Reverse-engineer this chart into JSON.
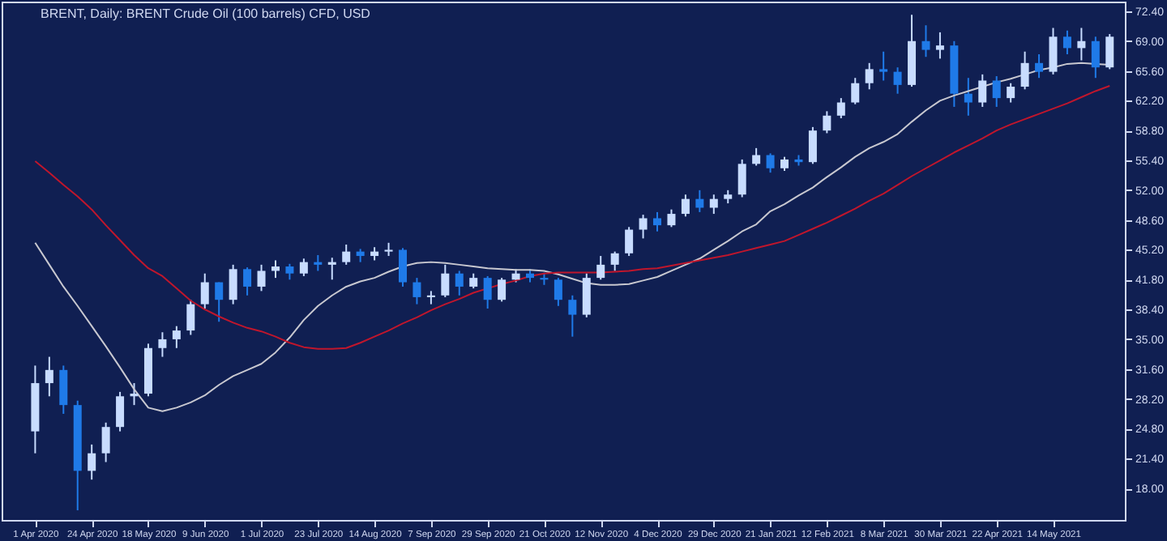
{
  "chart_data": {
    "type": "candlestick",
    "title": "BRENT, Daily: BRENT Crude Oil (100 barrels) CFD, USD",
    "categories": [
      "1 Apr 2020",
      null,
      null,
      null,
      "24 Apr 2020",
      null,
      null,
      null,
      "18 May 2020",
      null,
      null,
      null,
      "9 Jun 2020",
      null,
      null,
      null,
      "1 Jul 2020",
      null,
      null,
      null,
      "23 Jul 2020",
      null,
      null,
      null,
      "14 Aug 2020",
      null,
      null,
      null,
      "7 Sep 2020",
      null,
      null,
      null,
      "29 Sep 2020",
      null,
      null,
      null,
      "21 Oct 2020",
      null,
      null,
      null,
      "12 Nov 2020",
      null,
      null,
      null,
      "4 Dec 2020",
      null,
      null,
      null,
      "29 Dec 2020",
      null,
      null,
      null,
      "21 Jan 2021",
      null,
      null,
      null,
      "12 Feb 2021",
      null,
      null,
      null,
      "8 Mar 2021",
      null,
      null,
      null,
      "30 Mar 2021",
      null,
      null,
      null,
      "22 Apr 2021",
      null,
      null,
      null,
      "14 May 2021",
      null,
      null,
      null,
      null
    ],
    "ohlc": [
      [
        24.5,
        32.0,
        22.0,
        30.0
      ],
      [
        30.0,
        33.0,
        28.5,
        31.5
      ],
      [
        31.5,
        32.0,
        26.5,
        27.5
      ],
      [
        27.5,
        28.0,
        15.5,
        20.0
      ],
      [
        20.0,
        23.0,
        19.0,
        22.0
      ],
      [
        22.0,
        25.5,
        21.0,
        25.0
      ],
      [
        25.0,
        29.0,
        24.5,
        28.5
      ],
      [
        28.5,
        30.0,
        27.5,
        28.8
      ],
      [
        28.8,
        34.5,
        28.5,
        34.0
      ],
      [
        34.0,
        35.8,
        33.0,
        35.0
      ],
      [
        35.0,
        36.5,
        34.0,
        36.0
      ],
      [
        36.0,
        39.5,
        35.5,
        39.0
      ],
      [
        39.0,
        42.5,
        38.5,
        41.5
      ],
      [
        41.5,
        41.5,
        37.0,
        39.5
      ],
      [
        39.5,
        43.5,
        39.0,
        43.0
      ],
      [
        43.0,
        43.2,
        40.0,
        41.0
      ],
      [
        41.0,
        43.5,
        40.5,
        42.8
      ],
      [
        42.8,
        44.0,
        42.0,
        43.3
      ],
      [
        43.3,
        43.6,
        41.8,
        42.5
      ],
      [
        42.5,
        44.2,
        42.2,
        43.8
      ],
      [
        43.8,
        44.6,
        42.8,
        43.5
      ],
      [
        43.5,
        44.3,
        41.8,
        43.8
      ],
      [
        43.8,
        45.8,
        43.5,
        45.0
      ],
      [
        45.0,
        45.3,
        43.8,
        44.5
      ],
      [
        44.5,
        45.5,
        44.0,
        45.0
      ],
      [
        45.0,
        46.0,
        44.5,
        45.2
      ],
      [
        45.2,
        45.4,
        41.0,
        41.5
      ],
      [
        41.5,
        42.0,
        39.0,
        39.8
      ],
      [
        39.8,
        40.5,
        39.0,
        40.0
      ],
      [
        40.0,
        43.5,
        39.8,
        42.5
      ],
      [
        42.5,
        42.8,
        40.0,
        41.0
      ],
      [
        41.0,
        42.5,
        40.8,
        42.0
      ],
      [
        42.0,
        42.2,
        38.5,
        39.5
      ],
      [
        39.5,
        42.0,
        39.3,
        41.8
      ],
      [
        41.8,
        43.0,
        41.5,
        42.5
      ],
      [
        42.5,
        43.0,
        41.5,
        42.0
      ],
      [
        42.0,
        42.6,
        41.2,
        41.8
      ],
      [
        41.8,
        42.0,
        38.8,
        39.5
      ],
      [
        39.5,
        40.0,
        35.3,
        37.8
      ],
      [
        37.8,
        42.5,
        37.5,
        42.0
      ],
      [
        42.0,
        44.5,
        41.8,
        43.5
      ],
      [
        43.5,
        45.0,
        42.8,
        44.8
      ],
      [
        44.8,
        47.8,
        44.5,
        47.5
      ],
      [
        47.5,
        49.2,
        46.5,
        48.8
      ],
      [
        48.8,
        49.5,
        47.3,
        48.0
      ],
      [
        48.0,
        49.8,
        47.8,
        49.3
      ],
      [
        49.3,
        51.5,
        49.0,
        51.0
      ],
      [
        51.0,
        52.0,
        49.5,
        50.0
      ],
      [
        50.0,
        51.5,
        49.3,
        51.0
      ],
      [
        51.0,
        52.0,
        50.5,
        51.5
      ],
      [
        51.5,
        55.5,
        51.2,
        55.0
      ],
      [
        55.0,
        56.8,
        54.8,
        56.0
      ],
      [
        56.0,
        56.2,
        54.0,
        54.5
      ],
      [
        54.5,
        55.8,
        54.2,
        55.5
      ],
      [
        55.5,
        56.0,
        54.8,
        55.2
      ],
      [
        55.2,
        59.2,
        55.0,
        58.8
      ],
      [
        58.8,
        61.0,
        58.5,
        60.5
      ],
      [
        60.5,
        62.5,
        60.2,
        62.0
      ],
      [
        62.0,
        64.8,
        61.8,
        64.2
      ],
      [
        64.2,
        66.5,
        63.5,
        65.8
      ],
      [
        65.8,
        67.8,
        64.5,
        65.5
      ],
      [
        65.5,
        66.0,
        63.0,
        64.0
      ],
      [
        64.0,
        72.0,
        63.8,
        69.0
      ],
      [
        69.0,
        70.8,
        67.2,
        68.0
      ],
      [
        68.0,
        70.0,
        67.0,
        68.5
      ],
      [
        68.5,
        69.0,
        61.5,
        63.0
      ],
      [
        63.0,
        64.8,
        60.5,
        62.0
      ],
      [
        62.0,
        65.2,
        61.5,
        64.5
      ],
      [
        64.5,
        65.0,
        61.5,
        62.5
      ],
      [
        62.5,
        64.2,
        62.0,
        63.8
      ],
      [
        63.8,
        67.8,
        63.5,
        66.5
      ],
      [
        66.5,
        67.5,
        64.8,
        65.5
      ],
      [
        65.5,
        70.5,
        65.2,
        69.5
      ],
      [
        69.5,
        70.2,
        67.5,
        68.2
      ],
      [
        68.2,
        70.5,
        66.8,
        69.0
      ],
      [
        69.0,
        69.5,
        64.8,
        66.0
      ],
      [
        66.0,
        69.8,
        65.8,
        69.5
      ]
    ],
    "colors": [
      "#c8dcff",
      "#c8dcff",
      "#1f7ae8",
      "#1f7ae8",
      "#c8dcff",
      "#c8dcff",
      "#c8dcff",
      "#c8dcff",
      "#c8dcff",
      "#c8dcff",
      "#c8dcff",
      "#c8dcff",
      "#c8dcff",
      "#1f7ae8",
      "#c8dcff",
      "#1f7ae8",
      "#c8dcff",
      "#c8dcff",
      "#1f7ae8",
      "#c8dcff",
      "#1f7ae8",
      "#c8dcff",
      "#c8dcff",
      "#1f7ae8",
      "#c8dcff",
      "#c8dcff",
      "#1f7ae8",
      "#1f7ae8",
      "#c8dcff",
      "#c8dcff",
      "#1f7ae8",
      "#c8dcff",
      "#1f7ae8",
      "#c8dcff",
      "#c8dcff",
      "#1f7ae8",
      "#1f7ae8",
      "#1f7ae8",
      "#1f7ae8",
      "#c8dcff",
      "#c8dcff",
      "#c8dcff",
      "#c8dcff",
      "#c8dcff",
      "#1f7ae8",
      "#c8dcff",
      "#c8dcff",
      "#1f7ae8",
      "#c8dcff",
      "#c8dcff",
      "#c8dcff",
      "#c8dcff",
      "#1f7ae8",
      "#c8dcff",
      "#1f7ae8",
      "#c8dcff",
      "#c8dcff",
      "#c8dcff",
      "#c8dcff",
      "#c8dcff",
      "#1f7ae8",
      "#1f7ae8",
      "#c8dcff",
      "#1f7ae8",
      "#c8dcff",
      "#1f7ae8",
      "#1f7ae8",
      "#c8dcff",
      "#1f7ae8",
      "#c8dcff",
      "#c8dcff",
      "#1f7ae8",
      "#c8dcff",
      "#1f7ae8",
      "#c8dcff",
      "#1f7ae8",
      "#c8dcff"
    ],
    "series": [
      {
        "type": "line",
        "color": "#c8c8d0",
        "values": [
          46.0,
          43.5,
          41.0,
          38.8,
          36.5,
          34.2,
          31.8,
          29.3,
          27.2,
          26.8,
          27.2,
          27.8,
          28.6,
          29.8,
          30.8,
          31.5,
          32.2,
          33.5,
          35.2,
          37.2,
          38.8,
          40.0,
          41.0,
          41.6,
          42.0,
          42.7,
          43.3,
          43.7,
          43.8,
          43.7,
          43.5,
          43.3,
          43.1,
          43.0,
          42.9,
          42.9,
          42.8,
          42.4,
          41.9,
          41.4,
          41.2,
          41.2,
          41.3,
          41.7,
          42.1,
          42.8,
          43.5,
          44.2,
          45.2,
          46.2,
          47.3,
          48.1,
          49.6,
          50.4,
          51.4,
          52.3,
          53.5,
          54.6,
          55.8,
          56.8,
          57.5,
          58.4,
          59.8,
          61.1,
          62.2,
          62.8,
          63.3,
          63.8,
          64.3,
          64.7,
          65.2,
          65.7,
          66.0,
          66.4,
          66.5,
          66.4,
          66.3
        ]
      },
      {
        "type": "line",
        "color": "#c0162c",
        "values": [
          55.3,
          54.0,
          52.6,
          51.3,
          49.8,
          48.0,
          46.3,
          44.6,
          43.1,
          42.2,
          40.8,
          39.4,
          38.4,
          37.6,
          36.9,
          36.3,
          35.9,
          35.3,
          34.6,
          34.1,
          33.9,
          33.9,
          34.0,
          34.6,
          35.3,
          36.0,
          36.8,
          37.5,
          38.3,
          39.0,
          39.6,
          40.3,
          40.8,
          41.3,
          41.7,
          42.2,
          42.5,
          42.6,
          42.6,
          42.6,
          42.6,
          42.7,
          42.8,
          43.0,
          43.1,
          43.4,
          43.7,
          44.0,
          44.3,
          44.6,
          45.0,
          45.4,
          45.8,
          46.2,
          46.9,
          47.6,
          48.3,
          49.1,
          49.9,
          50.8,
          51.6,
          52.6,
          53.6,
          54.5,
          55.4,
          56.3,
          57.1,
          57.9,
          58.8,
          59.5,
          60.1,
          60.7,
          61.3,
          61.9,
          62.6,
          63.3,
          63.9
        ]
      }
    ],
    "ylim": [
      14.4,
      73.5
    ],
    "yticks": [
      {
        "value": 72.4,
        "label": "72.40"
      },
      {
        "value": 69.0,
        "label": "69.00"
      },
      {
        "value": 65.6,
        "label": "65.60"
      },
      {
        "value": 62.2,
        "label": "62.20"
      },
      {
        "value": 58.8,
        "label": "58.80"
      },
      {
        "value": 55.4,
        "label": "55.40"
      },
      {
        "value": 52.0,
        "label": "52.00"
      },
      {
        "value": 48.6,
        "label": "48.60"
      },
      {
        "value": 45.2,
        "label": "45.20"
      },
      {
        "value": 41.8,
        "label": "41.80"
      },
      {
        "value": 38.4,
        "label": "38.40"
      },
      {
        "value": 35.0,
        "label": "35.00"
      },
      {
        "value": 31.6,
        "label": "31.60"
      },
      {
        "value": 28.2,
        "label": "28.20"
      },
      {
        "value": 24.8,
        "label": "24.80"
      },
      {
        "value": 21.4,
        "label": "21.40"
      },
      {
        "value": 18.0,
        "label": "18.00"
      }
    ],
    "grid": false,
    "legend": false
  }
}
